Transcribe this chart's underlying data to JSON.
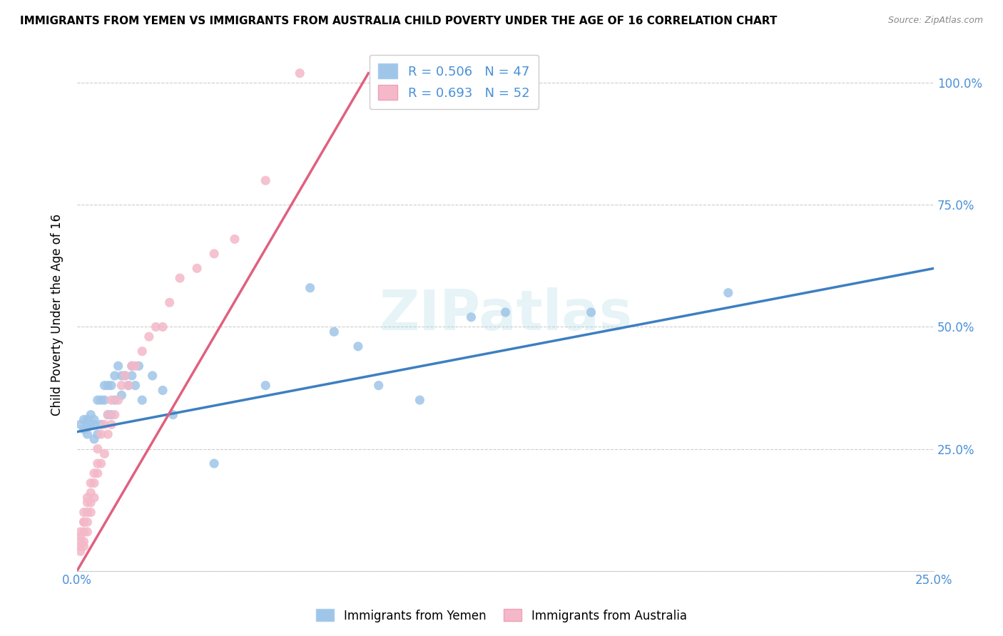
{
  "title": "IMMIGRANTS FROM YEMEN VS IMMIGRANTS FROM AUSTRALIA CHILD POVERTY UNDER THE AGE OF 16 CORRELATION CHART",
  "source": "Source: ZipAtlas.com",
  "ylabel": "Child Poverty Under the Age of 16",
  "xlim": [
    0.0,
    0.25
  ],
  "ylim": [
    0.0,
    1.05
  ],
  "yticks": [
    0.0,
    0.25,
    0.5,
    0.75,
    1.0
  ],
  "ytick_labels": [
    "",
    "25.0%",
    "50.0%",
    "75.0%",
    "100.0%"
  ],
  "xticks": [
    0.0,
    0.05,
    0.1,
    0.15,
    0.2,
    0.25
  ],
  "xtick_labels": [
    "0.0%",
    "",
    "",
    "",
    "",
    "25.0%"
  ],
  "legend_r_yemen": "R = 0.506",
  "legend_n_yemen": "N = 47",
  "legend_r_australia": "R = 0.693",
  "legend_n_australia": "N = 52",
  "color_yemen": "#9fc5e8",
  "color_australia": "#f4b8c8",
  "color_trendline_yemen": "#3d7fc1",
  "color_trendline_australia": "#e06080",
  "color_axis_labels": "#4a90d9",
  "watermark": "ZIPatlas",
  "yemen_x": [
    0.001,
    0.002,
    0.002,
    0.003,
    0.003,
    0.003,
    0.004,
    0.004,
    0.005,
    0.005,
    0.005,
    0.006,
    0.006,
    0.007,
    0.007,
    0.008,
    0.008,
    0.009,
    0.009,
    0.01,
    0.01,
    0.011,
    0.011,
    0.012,
    0.013,
    0.013,
    0.014,
    0.015,
    0.016,
    0.016,
    0.017,
    0.018,
    0.019,
    0.022,
    0.025,
    0.028,
    0.04,
    0.055,
    0.068,
    0.075,
    0.082,
    0.088,
    0.1,
    0.115,
    0.125,
    0.15,
    0.19
  ],
  "yemen_y": [
    0.3,
    0.29,
    0.31,
    0.28,
    0.3,
    0.31,
    0.3,
    0.32,
    0.27,
    0.3,
    0.31,
    0.28,
    0.35,
    0.3,
    0.35,
    0.35,
    0.38,
    0.32,
    0.38,
    0.38,
    0.32,
    0.4,
    0.35,
    0.42,
    0.36,
    0.4,
    0.4,
    0.38,
    0.4,
    0.42,
    0.38,
    0.42,
    0.35,
    0.4,
    0.37,
    0.32,
    0.22,
    0.38,
    0.58,
    0.49,
    0.46,
    0.38,
    0.35,
    0.52,
    0.53,
    0.53,
    0.57
  ],
  "australia_x": [
    0.001,
    0.001,
    0.001,
    0.001,
    0.001,
    0.002,
    0.002,
    0.002,
    0.002,
    0.002,
    0.002,
    0.003,
    0.003,
    0.003,
    0.003,
    0.003,
    0.004,
    0.004,
    0.004,
    0.004,
    0.005,
    0.005,
    0.005,
    0.006,
    0.006,
    0.006,
    0.007,
    0.007,
    0.008,
    0.008,
    0.009,
    0.009,
    0.01,
    0.01,
    0.011,
    0.012,
    0.013,
    0.014,
    0.015,
    0.016,
    0.017,
    0.019,
    0.021,
    0.023,
    0.025,
    0.027,
    0.03,
    0.035,
    0.04,
    0.046,
    0.055,
    0.065
  ],
  "australia_y": [
    0.04,
    0.06,
    0.05,
    0.07,
    0.08,
    0.05,
    0.06,
    0.08,
    0.1,
    0.1,
    0.12,
    0.08,
    0.1,
    0.12,
    0.14,
    0.15,
    0.12,
    0.14,
    0.16,
    0.18,
    0.15,
    0.18,
    0.2,
    0.2,
    0.22,
    0.25,
    0.22,
    0.28,
    0.24,
    0.3,
    0.28,
    0.32,
    0.3,
    0.35,
    0.32,
    0.35,
    0.38,
    0.4,
    0.38,
    0.42,
    0.42,
    0.45,
    0.48,
    0.5,
    0.5,
    0.55,
    0.6,
    0.62,
    0.65,
    0.68,
    0.8,
    1.02
  ],
  "trendline_yemen_x0": 0.0,
  "trendline_yemen_y0": 0.285,
  "trendline_yemen_x1": 0.25,
  "trendline_yemen_y1": 0.62,
  "trendline_australia_x0": 0.0,
  "trendline_australia_y0": 0.0,
  "trendline_australia_x1": 0.085,
  "trendline_australia_y1": 1.02
}
